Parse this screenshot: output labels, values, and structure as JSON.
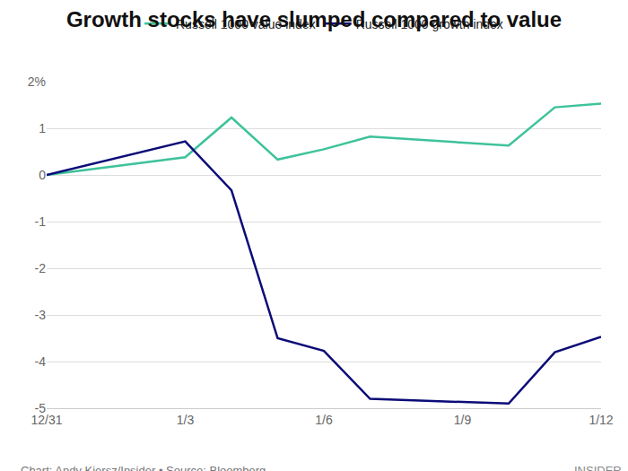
{
  "chart_data": {
    "type": "line",
    "title": "Growth stocks have slumped compared to value",
    "x": [
      0,
      3,
      4,
      5,
      6,
      7,
      10,
      11,
      12
    ],
    "series": [
      {
        "name": "Russell 1000 value index",
        "color": "#3ec29b",
        "values": [
          0,
          0.38,
          1.23,
          0.33,
          0.55,
          0.82,
          0.63,
          1.45,
          1.53
        ]
      },
      {
        "name": "Russell 1000 growth index",
        "color": "#0b0b78",
        "values": [
          0,
          0.72,
          -0.33,
          -3.5,
          -3.77,
          -4.8,
          -4.9,
          -3.8,
          -3.47
        ]
      }
    ],
    "xlim": [
      0,
      12
    ],
    "xticks": [
      {
        "value": 0,
        "label": "12/31"
      },
      {
        "value": 3,
        "label": "1/3"
      },
      {
        "value": 6,
        "label": "1/6"
      },
      {
        "value": 9,
        "label": "1/9"
      },
      {
        "value": 12,
        "label": "1/12"
      }
    ],
    "ylim": [
      -5,
      2
    ],
    "yticks": [
      {
        "value": 2,
        "label": "2%"
      },
      1,
      0,
      -1,
      -2,
      -3,
      -4,
      -5
    ],
    "grid": true,
    "legend": "top",
    "annotations": [
      "Chart: Andy Kiersz/Insider • Source: Bloomberg",
      "INSIDER"
    ]
  }
}
